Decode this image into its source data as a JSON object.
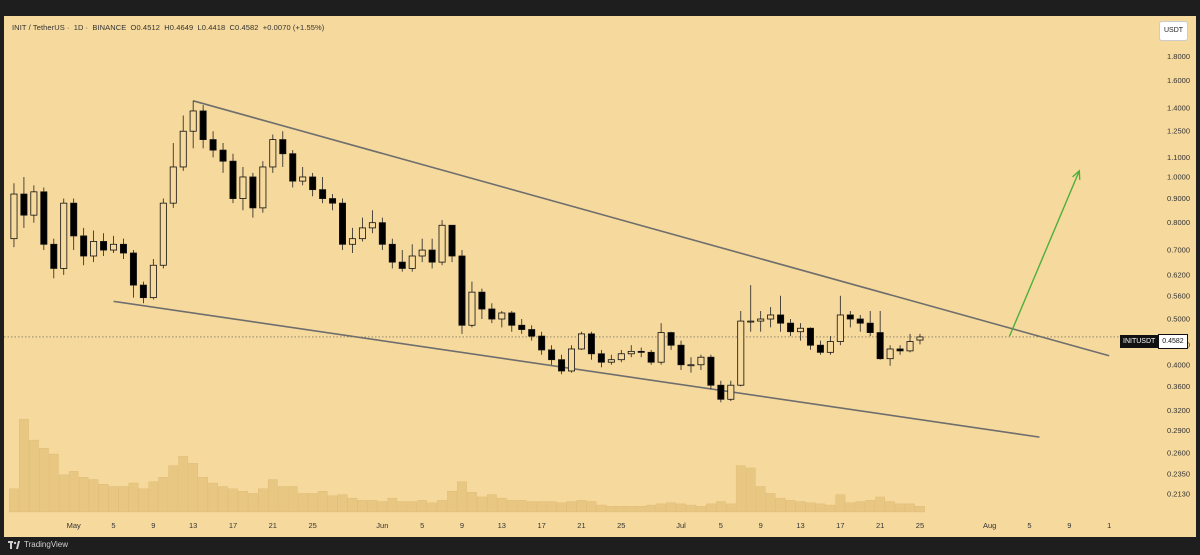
{
  "header": {
    "symbol": "INIT / TetherUS",
    "interval": "1D",
    "exchange": "BINANCE",
    "open": "O0.4512",
    "high": "H0.4649",
    "low": "L0.4418",
    "close": "C0.4582",
    "change": "+0.0070 (+1.55%)"
  },
  "currency": "USDT",
  "last_price": {
    "symbol": "INITUSDT",
    "value": "0.4582"
  },
  "branding": "TradingView",
  "colors": {
    "background": "#f6d99c",
    "candle_up_fill": "#f6d99c",
    "candle_down_fill": "#000000",
    "wick": "#222222",
    "trendline": "#6e6e6e",
    "arrow": "#4caf3d",
    "volume": "#e8c783"
  },
  "chart_data": {
    "type": "candlestick",
    "y_scale": "log",
    "ylim": [
      0.195,
      1.97
    ],
    "yticks": [
      "1.8000",
      "1.6000",
      "1.4000",
      "1.2500",
      "1.1000",
      "1.0000",
      "0.9000",
      "0.8000",
      "0.7000",
      "0.6200",
      "0.5600",
      "0.5000",
      "0.4400",
      "0.4000",
      "0.3600",
      "0.3200",
      "0.2900",
      "0.2600",
      "0.2350",
      "0.2130"
    ],
    "xticks": [
      {
        "label": "May",
        "day": 0
      },
      {
        "label": "5",
        "day": 4
      },
      {
        "label": "9",
        "day": 8
      },
      {
        "label": "13",
        "day": 12
      },
      {
        "label": "17",
        "day": 16
      },
      {
        "label": "21",
        "day": 20
      },
      {
        "label": "25",
        "day": 24
      },
      {
        "label": "Jun",
        "day": 31
      },
      {
        "label": "5",
        "day": 35
      },
      {
        "label": "9",
        "day": 39
      },
      {
        "label": "13",
        "day": 43
      },
      {
        "label": "17",
        "day": 47
      },
      {
        "label": "21",
        "day": 51
      },
      {
        "label": "25",
        "day": 55
      },
      {
        "label": "Jul",
        "day": 61
      },
      {
        "label": "5",
        "day": 65
      },
      {
        "label": "9",
        "day": 69
      },
      {
        "label": "13",
        "day": 73
      },
      {
        "label": "17",
        "day": 77
      },
      {
        "label": "21",
        "day": 81
      },
      {
        "label": "25",
        "day": 85
      },
      {
        "label": "Aug",
        "day": 92
      },
      {
        "label": "5",
        "day": 96
      },
      {
        "label": "9",
        "day": 100
      },
      {
        "label": "1",
        "day": 104
      }
    ],
    "xlim": [
      -7,
      107.5
    ],
    "start_day": -6,
    "candles": [
      [
        0.74,
        0.92,
        0.97,
        0.71,
        0.2
      ],
      [
        0.92,
        0.83,
        1.0,
        0.78,
        0.8
      ],
      [
        0.83,
        0.93,
        0.96,
        0.8,
        0.62
      ],
      [
        0.93,
        0.72,
        0.95,
        0.7,
        0.55
      ],
      [
        0.72,
        0.64,
        0.74,
        0.61,
        0.5
      ],
      [
        0.64,
        0.88,
        0.9,
        0.62,
        0.32
      ],
      [
        0.88,
        0.75,
        0.9,
        0.7,
        0.35
      ],
      [
        0.75,
        0.68,
        0.78,
        0.65,
        0.3
      ],
      [
        0.68,
        0.73,
        0.77,
        0.66,
        0.28
      ],
      [
        0.73,
        0.7,
        0.76,
        0.68,
        0.24
      ],
      [
        0.7,
        0.72,
        0.75,
        0.69,
        0.22
      ],
      [
        0.72,
        0.69,
        0.74,
        0.67,
        0.22
      ],
      [
        0.69,
        0.59,
        0.7,
        0.555,
        0.25
      ],
      [
        0.59,
        0.555,
        0.6,
        0.54,
        0.2
      ],
      [
        0.555,
        0.65,
        0.67,
        0.55,
        0.26
      ],
      [
        0.65,
        0.88,
        0.9,
        0.64,
        0.3
      ],
      [
        0.88,
        1.05,
        1.18,
        0.86,
        0.4
      ],
      [
        1.05,
        1.25,
        1.35,
        1.03,
        0.48
      ],
      [
        1.25,
        1.38,
        1.45,
        1.15,
        0.42
      ],
      [
        1.38,
        1.2,
        1.42,
        1.15,
        0.3
      ],
      [
        1.2,
        1.14,
        1.25,
        1.1,
        0.25
      ],
      [
        1.14,
        1.08,
        1.18,
        1.02,
        0.22
      ],
      [
        1.08,
        0.9,
        1.12,
        0.88,
        0.2
      ],
      [
        0.9,
        1.0,
        1.05,
        0.85,
        0.18
      ],
      [
        1.0,
        0.86,
        1.02,
        0.82,
        0.16
      ],
      [
        0.86,
        1.05,
        1.08,
        0.84,
        0.2
      ],
      [
        1.05,
        1.2,
        1.23,
        1.02,
        0.28
      ],
      [
        1.2,
        1.12,
        1.25,
        1.05,
        0.22
      ],
      [
        1.12,
        0.98,
        1.14,
        0.95,
        0.22
      ],
      [
        0.98,
        1.0,
        1.05,
        0.96,
        0.16
      ],
      [
        1.0,
        0.94,
        1.02,
        0.91,
        0.16
      ],
      [
        0.94,
        0.9,
        1.0,
        0.88,
        0.18
      ],
      [
        0.9,
        0.88,
        0.92,
        0.85,
        0.14
      ],
      [
        0.88,
        0.72,
        0.9,
        0.7,
        0.15
      ],
      [
        0.72,
        0.74,
        0.78,
        0.69,
        0.12
      ],
      [
        0.74,
        0.78,
        0.82,
        0.73,
        0.1
      ],
      [
        0.78,
        0.8,
        0.85,
        0.76,
        0.1
      ],
      [
        0.8,
        0.72,
        0.82,
        0.7,
        0.09
      ],
      [
        0.72,
        0.66,
        0.74,
        0.64,
        0.12
      ],
      [
        0.66,
        0.64,
        0.7,
        0.63,
        0.09
      ],
      [
        0.64,
        0.68,
        0.72,
        0.63,
        0.09
      ],
      [
        0.68,
        0.7,
        0.74,
        0.66,
        0.1
      ],
      [
        0.7,
        0.66,
        0.74,
        0.64,
        0.08
      ],
      [
        0.66,
        0.79,
        0.81,
        0.65,
        0.1
      ],
      [
        0.79,
        0.68,
        0.76,
        0.66,
        0.18
      ],
      [
        0.68,
        0.485,
        0.7,
        0.465,
        0.26
      ],
      [
        0.485,
        0.57,
        0.6,
        0.48,
        0.17
      ],
      [
        0.57,
        0.525,
        0.58,
        0.5,
        0.13
      ],
      [
        0.525,
        0.5,
        0.54,
        0.49,
        0.15
      ],
      [
        0.5,
        0.515,
        0.52,
        0.48,
        0.12
      ],
      [
        0.515,
        0.485,
        0.52,
        0.47,
        0.1
      ],
      [
        0.485,
        0.475,
        0.5,
        0.465,
        0.1
      ],
      [
        0.475,
        0.46,
        0.485,
        0.45,
        0.09
      ],
      [
        0.46,
        0.43,
        0.47,
        0.42,
        0.09
      ],
      [
        0.43,
        0.41,
        0.44,
        0.4,
        0.09
      ],
      [
        0.41,
        0.388,
        0.42,
        0.382,
        0.08
      ],
      [
        0.388,
        0.432,
        0.44,
        0.385,
        0.09
      ],
      [
        0.432,
        0.465,
        0.47,
        0.43,
        0.1
      ],
      [
        0.465,
        0.422,
        0.47,
        0.41,
        0.09
      ],
      [
        0.422,
        0.405,
        0.43,
        0.395,
        0.06
      ],
      [
        0.405,
        0.41,
        0.42,
        0.4,
        0.05
      ],
      [
        0.41,
        0.422,
        0.43,
        0.405,
        0.05
      ],
      [
        0.422,
        0.427,
        0.44,
        0.415,
        0.05
      ],
      [
        0.427,
        0.425,
        0.435,
        0.415,
        0.05
      ],
      [
        0.425,
        0.405,
        0.43,
        0.4,
        0.06
      ],
      [
        0.405,
        0.468,
        0.49,
        0.4,
        0.07
      ],
      [
        0.468,
        0.44,
        0.47,
        0.43,
        0.08
      ],
      [
        0.44,
        0.4,
        0.45,
        0.39,
        0.07
      ],
      [
        0.4,
        0.4,
        0.415,
        0.385,
        0.06
      ],
      [
        0.4,
        0.415,
        0.42,
        0.39,
        0.05
      ],
      [
        0.415,
        0.362,
        0.42,
        0.355,
        0.07
      ],
      [
        0.362,
        0.338,
        0.37,
        0.333,
        0.09
      ],
      [
        0.338,
        0.362,
        0.37,
        0.335,
        0.07
      ],
      [
        0.362,
        0.495,
        0.52,
        0.36,
        0.4
      ],
      [
        0.495,
        0.495,
        0.59,
        0.47,
        0.38
      ],
      [
        0.495,
        0.5,
        0.52,
        0.47,
        0.22
      ],
      [
        0.5,
        0.51,
        0.53,
        0.48,
        0.16
      ],
      [
        0.51,
        0.49,
        0.56,
        0.47,
        0.12
      ],
      [
        0.49,
        0.47,
        0.5,
        0.46,
        0.1
      ],
      [
        0.47,
        0.478,
        0.49,
        0.45,
        0.09
      ],
      [
        0.478,
        0.44,
        0.48,
        0.43,
        0.08
      ],
      [
        0.44,
        0.425,
        0.45,
        0.42,
        0.07
      ],
      [
        0.425,
        0.448,
        0.46,
        0.42,
        0.06
      ],
      [
        0.448,
        0.51,
        0.56,
        0.44,
        0.15
      ],
      [
        0.51,
        0.5,
        0.52,
        0.48,
        0.08
      ],
      [
        0.5,
        0.49,
        0.51,
        0.47,
        0.09
      ],
      [
        0.49,
        0.468,
        0.52,
        0.46,
        0.1
      ],
      [
        0.468,
        0.412,
        0.52,
        0.41,
        0.13
      ],
      [
        0.412,
        0.432,
        0.44,
        0.398,
        0.09
      ],
      [
        0.432,
        0.428,
        0.44,
        0.42,
        0.07
      ],
      [
        0.428,
        0.448,
        0.465,
        0.425,
        0.07
      ],
      [
        0.4512,
        0.4582,
        0.4649,
        0.4418,
        0.05
      ]
    ],
    "trendlines": [
      {
        "name": "upper",
        "from": [
          12,
          1.45
        ],
        "to": [
          104,
          0.418
        ]
      },
      {
        "name": "lower",
        "from": [
          4,
          0.545
        ],
        "to": [
          97,
          0.281
        ]
      }
    ],
    "arrow": {
      "from": [
        94,
        0.46
      ],
      "to": [
        101,
        1.03
      ]
    },
    "last_price_line": 0.4582,
    "volume_max_norm": 1.0
  }
}
